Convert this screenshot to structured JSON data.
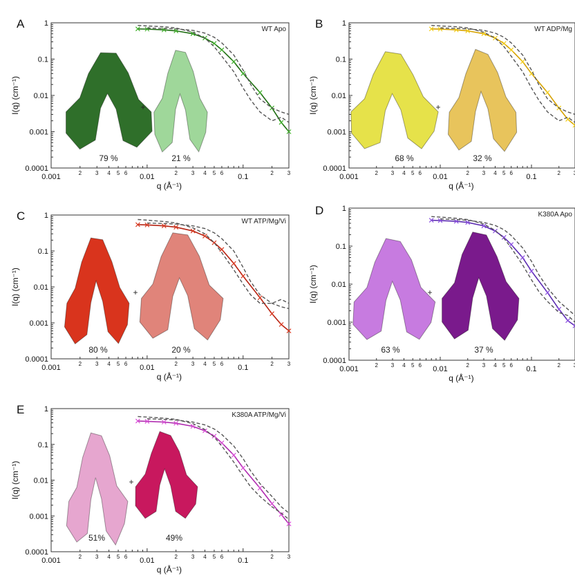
{
  "chart_data": [
    {
      "type": "scatter",
      "panel_letter": "A",
      "title": "WT Apo",
      "xlabel": "q (Å⁻¹)",
      "ylabel": "I(q) (cm⁻¹)",
      "xscale": "log",
      "yscale": "log",
      "xlim": [
        0.001,
        0.3
      ],
      "ylim": [
        0.0001,
        1
      ],
      "x_tick_labels": [
        "0.001",
        "0.01",
        "0.1"
      ],
      "y_tick_labels": [
        "0.0001",
        "0.001",
        "0.01",
        "0.1",
        "1"
      ],
      "minor_tick_labels": [
        "2",
        "3",
        "4",
        "5",
        "6",
        "2",
        "3",
        "4",
        "5",
        "6",
        "2",
        "3"
      ],
      "color": "#3fb02a",
      "fit_color": "#1f6e12",
      "model_color_1": "#2f6f2a",
      "model_color_2": "#9fd79a",
      "fractions": [
        "79 %",
        "21 %"
      ],
      "series": [
        {
          "kind": "data",
          "x": [
            0.008,
            0.01,
            0.015,
            0.02,
            0.03,
            0.04,
            0.05,
            0.06,
            0.08,
            0.1,
            0.15,
            0.2,
            0.25,
            0.3
          ],
          "y": [
            0.68,
            0.67,
            0.64,
            0.6,
            0.5,
            0.38,
            0.27,
            0.18,
            0.085,
            0.04,
            0.012,
            0.0045,
            0.0018,
            0.001
          ]
        },
        {
          "kind": "dashed",
          "x": [
            0.008,
            0.01,
            0.015,
            0.02,
            0.03,
            0.04,
            0.05,
            0.06,
            0.08,
            0.1,
            0.12,
            0.15,
            0.2,
            0.25,
            0.3
          ],
          "y": [
            0.85,
            0.82,
            0.78,
            0.72,
            0.55,
            0.38,
            0.22,
            0.12,
            0.045,
            0.016,
            0.0075,
            0.0035,
            0.002,
            0.0025,
            0.0018
          ]
        },
        {
          "kind": "dashed",
          "x": [
            0.01,
            0.015,
            0.02,
            0.03,
            0.04,
            0.05,
            0.06,
            0.08,
            0.1,
            0.12,
            0.15,
            0.2,
            0.25,
            0.3
          ],
          "y": [
            0.72,
            0.7,
            0.68,
            0.62,
            0.52,
            0.4,
            0.28,
            0.13,
            0.05,
            0.02,
            0.008,
            0.0045,
            0.0035,
            0.003
          ]
        }
      ]
    },
    {
      "type": "scatter",
      "panel_letter": "B",
      "title": "WT ADP/Mg",
      "xlabel": "q (Å⁻¹)",
      "ylabel": "I(q) (cm⁻¹)",
      "xscale": "log",
      "yscale": "log",
      "xlim": [
        0.001,
        0.3
      ],
      "ylim": [
        0.0001,
        1
      ],
      "x_tick_labels": [
        "0.001",
        "0.01",
        "0.1"
      ],
      "y_tick_labels": [
        "0.0001",
        "0.001",
        "0.01",
        "0.1",
        "1"
      ],
      "minor_tick_labels": [
        "2",
        "3",
        "4",
        "5",
        "6",
        "2",
        "3",
        "4",
        "5",
        "6",
        "2",
        "3"
      ],
      "color": "#f2cd1a",
      "fit_color": "#d6a200",
      "model_color_1": "#e6e24a",
      "model_color_2": "#e8c45c",
      "fractions": [
        "68 %",
        "32 %"
      ],
      "series": [
        {
          "kind": "data",
          "x": [
            0.008,
            0.01,
            0.015,
            0.02,
            0.03,
            0.04,
            0.05,
            0.06,
            0.08,
            0.1,
            0.15,
            0.2,
            0.25,
            0.3
          ],
          "y": [
            0.68,
            0.67,
            0.64,
            0.6,
            0.5,
            0.38,
            0.27,
            0.18,
            0.085,
            0.04,
            0.012,
            0.0045,
            0.0022,
            0.0015
          ]
        },
        {
          "kind": "dashed",
          "x": [
            0.008,
            0.01,
            0.015,
            0.02,
            0.03,
            0.04,
            0.05,
            0.06,
            0.08,
            0.1,
            0.12,
            0.15,
            0.2,
            0.25,
            0.3
          ],
          "y": [
            0.85,
            0.82,
            0.78,
            0.72,
            0.55,
            0.38,
            0.22,
            0.12,
            0.045,
            0.016,
            0.0075,
            0.0035,
            0.002,
            0.0025,
            0.0018
          ]
        },
        {
          "kind": "dashed",
          "x": [
            0.01,
            0.015,
            0.02,
            0.03,
            0.04,
            0.05,
            0.06,
            0.08,
            0.1,
            0.12,
            0.15,
            0.2,
            0.25,
            0.3
          ],
          "y": [
            0.72,
            0.7,
            0.68,
            0.62,
            0.52,
            0.4,
            0.28,
            0.13,
            0.05,
            0.02,
            0.008,
            0.0045,
            0.0035,
            0.003
          ]
        }
      ]
    },
    {
      "type": "scatter",
      "panel_letter": "C",
      "title": "WT ATP/Mg/Vi",
      "xlabel": "q (Å⁻¹)",
      "ylabel": "I(q) (cm⁻¹)",
      "xscale": "log",
      "yscale": "log",
      "xlim": [
        0.001,
        0.3
      ],
      "ylim": [
        0.0001,
        1
      ],
      "x_tick_labels": [
        "0.001",
        "0.01",
        "0.1"
      ],
      "y_tick_labels": [
        "0.0001",
        "0.001",
        "0.01",
        "0.1",
        "1"
      ],
      "minor_tick_labels": [
        "2",
        "3",
        "4",
        "5",
        "6",
        "2",
        "3",
        "4",
        "5",
        "6",
        "2",
        "3"
      ],
      "color": "#d83a22",
      "fit_color": "#b72312",
      "model_color_1": "#d9341d",
      "model_color_2": "#e0847a",
      "fractions": [
        "80 %",
        "20 %"
      ],
      "series": [
        {
          "kind": "data",
          "x": [
            0.008,
            0.01,
            0.015,
            0.02,
            0.03,
            0.04,
            0.05,
            0.06,
            0.08,
            0.1,
            0.15,
            0.2,
            0.25,
            0.3
          ],
          "y": [
            0.54,
            0.53,
            0.5,
            0.46,
            0.36,
            0.26,
            0.17,
            0.11,
            0.045,
            0.02,
            0.005,
            0.0018,
            0.0009,
            0.0006
          ]
        },
        {
          "kind": "dashed",
          "x": [
            0.008,
            0.01,
            0.015,
            0.02,
            0.03,
            0.04,
            0.05,
            0.06,
            0.08,
            0.1,
            0.12,
            0.15,
            0.2,
            0.25,
            0.3
          ],
          "y": [
            0.75,
            0.72,
            0.66,
            0.6,
            0.44,
            0.3,
            0.17,
            0.09,
            0.03,
            0.012,
            0.006,
            0.0035,
            0.0035,
            0.0045,
            0.0035
          ]
        },
        {
          "kind": "dashed",
          "x": [
            0.01,
            0.015,
            0.02,
            0.03,
            0.04,
            0.05,
            0.06,
            0.08,
            0.1,
            0.12,
            0.15,
            0.2,
            0.25,
            0.3
          ],
          "y": [
            0.6,
            0.58,
            0.56,
            0.5,
            0.42,
            0.32,
            0.22,
            0.1,
            0.035,
            0.014,
            0.006,
            0.0035,
            0.0028,
            0.0025
          ]
        }
      ]
    },
    {
      "type": "scatter",
      "panel_letter": "D",
      "title": "K380A Apo",
      "xlabel": "q (Å⁻¹)",
      "ylabel": "I(q) (cm⁻¹)",
      "xscale": "log",
      "yscale": "log",
      "xlim": [
        0.001,
        0.3
      ],
      "ylim": [
        0.0001,
        1
      ],
      "x_tick_labels": [
        "0.001",
        "0.01",
        "0.1"
      ],
      "y_tick_labels": [
        "0.0001",
        "0.001",
        "0.01",
        "0.1",
        "1"
      ],
      "minor_tick_labels": [
        "2",
        "3",
        "4",
        "5",
        "6",
        "2",
        "3",
        "4",
        "5",
        "6",
        "2",
        "3"
      ],
      "color": "#8a4fe0",
      "fit_color": "#5b2bb0",
      "model_color_1": "#c77be0",
      "model_color_2": "#7a1a8c",
      "fractions": [
        "63 %",
        "37 %"
      ],
      "series": [
        {
          "kind": "data",
          "x": [
            0.008,
            0.01,
            0.015,
            0.02,
            0.03,
            0.04,
            0.05,
            0.06,
            0.08,
            0.1,
            0.15,
            0.2,
            0.25,
            0.3
          ],
          "y": [
            0.48,
            0.47,
            0.45,
            0.42,
            0.34,
            0.25,
            0.17,
            0.11,
            0.05,
            0.022,
            0.006,
            0.0022,
            0.0011,
            0.0008
          ]
        },
        {
          "kind": "dashed",
          "x": [
            0.008,
            0.01,
            0.015,
            0.02,
            0.03,
            0.04,
            0.05,
            0.06,
            0.08,
            0.1,
            0.12,
            0.15,
            0.2,
            0.25,
            0.3
          ],
          "y": [
            0.6,
            0.58,
            0.54,
            0.5,
            0.38,
            0.26,
            0.16,
            0.09,
            0.032,
            0.013,
            0.0065,
            0.0035,
            0.0018,
            0.0015,
            0.001
          ]
        },
        {
          "kind": "dashed",
          "x": [
            0.01,
            0.015,
            0.02,
            0.03,
            0.04,
            0.05,
            0.06,
            0.08,
            0.1,
            0.12,
            0.15,
            0.2,
            0.25,
            0.3
          ],
          "y": [
            0.52,
            0.5,
            0.48,
            0.42,
            0.35,
            0.27,
            0.19,
            0.09,
            0.04,
            0.018,
            0.008,
            0.0035,
            0.0022,
            0.0015
          ]
        }
      ]
    },
    {
      "type": "scatter",
      "panel_letter": "E",
      "title": "K380A ATP/Mg/Vi",
      "xlabel": "q (Å⁻¹)",
      "ylabel": "I(q) (cm⁻¹)",
      "xscale": "log",
      "yscale": "log",
      "xlim": [
        0.001,
        0.3
      ],
      "ylim": [
        0.0001,
        1
      ],
      "x_tick_labels": [
        "0.001",
        "0.01",
        "0.1"
      ],
      "y_tick_labels": [
        "0.0001",
        "0.001",
        "0.01",
        "0.1",
        "1"
      ],
      "minor_tick_labels": [
        "2",
        "3",
        "4",
        "5",
        "6",
        "2",
        "3",
        "4",
        "5",
        "6",
        "2",
        "3"
      ],
      "color": "#d94fd6",
      "fit_color": "#b02ab0",
      "model_color_1": "#e6a6cf",
      "model_color_2": "#c8185e",
      "fractions": [
        "51%",
        "49%"
      ],
      "series": [
        {
          "kind": "data",
          "x": [
            0.008,
            0.01,
            0.015,
            0.02,
            0.03,
            0.04,
            0.05,
            0.06,
            0.08,
            0.1,
            0.15,
            0.2,
            0.25,
            0.3
          ],
          "y": [
            0.45,
            0.44,
            0.42,
            0.39,
            0.32,
            0.24,
            0.17,
            0.11,
            0.05,
            0.022,
            0.006,
            0.0022,
            0.0011,
            0.0006
          ]
        },
        {
          "kind": "dashed",
          "x": [
            0.008,
            0.01,
            0.015,
            0.02,
            0.03,
            0.04,
            0.05,
            0.06,
            0.08,
            0.1,
            0.12,
            0.15,
            0.2,
            0.25,
            0.3
          ],
          "y": [
            0.6,
            0.58,
            0.54,
            0.5,
            0.38,
            0.26,
            0.16,
            0.09,
            0.032,
            0.013,
            0.0065,
            0.0035,
            0.0018,
            0.0012,
            0.0008
          ]
        },
        {
          "kind": "dashed",
          "x": [
            0.01,
            0.015,
            0.02,
            0.03,
            0.04,
            0.05,
            0.06,
            0.08,
            0.1,
            0.12,
            0.15,
            0.2,
            0.25,
            0.3
          ],
          "y": [
            0.52,
            0.5,
            0.48,
            0.42,
            0.35,
            0.27,
            0.19,
            0.09,
            0.04,
            0.018,
            0.008,
            0.0035,
            0.0018,
            0.0012
          ]
        }
      ]
    }
  ]
}
